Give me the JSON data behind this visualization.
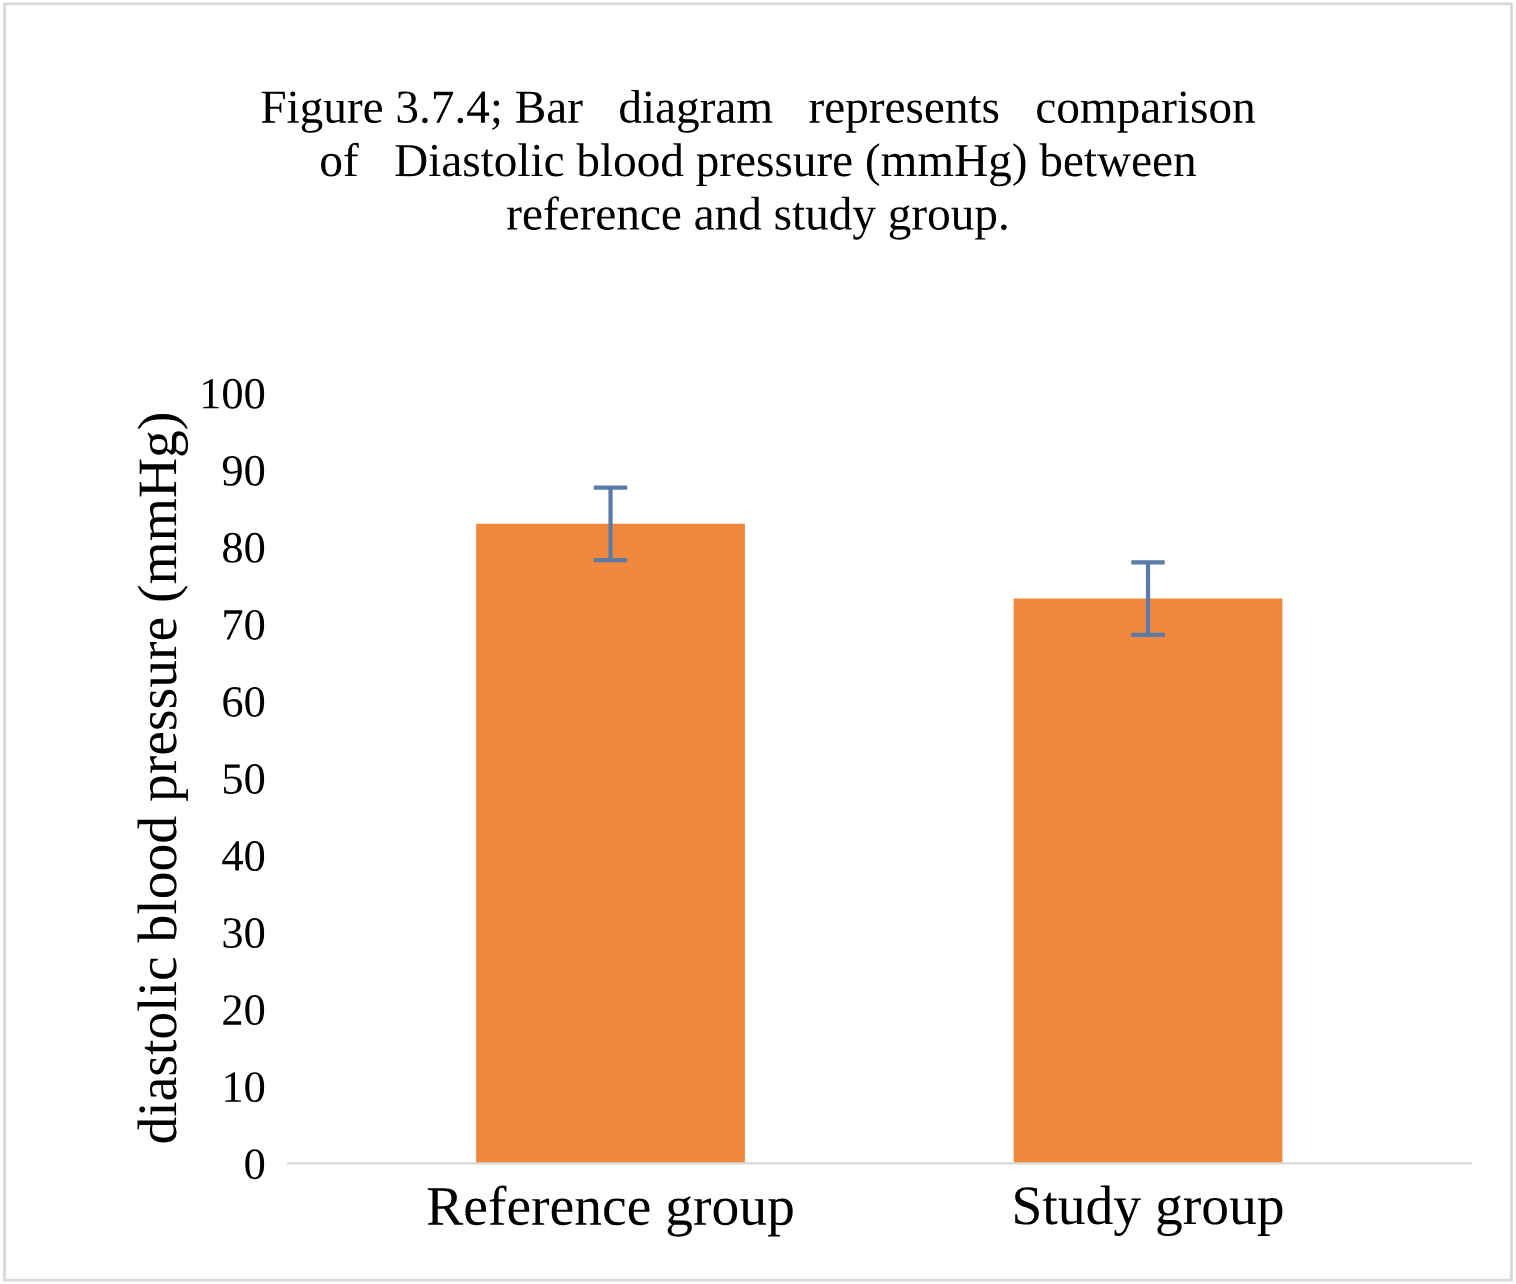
{
  "chart_data": {
    "type": "bar",
    "title": "Figure 3.7.4; Bar   diagram   represents   comparison\nof   Diastolic blood pressure (mmHg) between\nreference and study group.",
    "ylabel": "diastolic blood pressure (mmHg)",
    "categories": [
      "Reference group",
      "Study group"
    ],
    "values": [
      83,
      73.3
    ],
    "errors": [
      4.7,
      4.7
    ],
    "color": "#f0883e",
    "ylim": [
      0,
      100
    ],
    "yticks": [
      0,
      10,
      20,
      30,
      40,
      50,
      60,
      70,
      80,
      90,
      100
    ],
    "grid": false
  }
}
